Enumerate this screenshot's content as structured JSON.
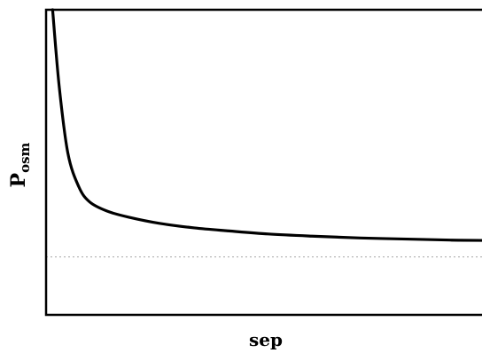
{
  "chart_data": {
    "type": "line",
    "title": "",
    "xlabel": "sep",
    "ylabel": {
      "main": "P",
      "subscript": "osm"
    },
    "ticks": "none",
    "grid": false,
    "legend": "none",
    "xlim": [
      0,
      1
    ],
    "ylim": [
      0,
      1
    ],
    "series": [
      {
        "color": "#000000",
        "x": [
          0.015,
          0.03,
          0.05,
          0.075,
          0.1,
          0.14,
          0.19,
          0.26,
          0.34,
          0.42,
          0.51,
          0.61,
          0.72,
          0.84,
          0.93,
          1.0
        ],
        "y": [
          1.0,
          0.75,
          0.53,
          0.42,
          0.37,
          0.34,
          0.32,
          0.3,
          0.285,
          0.275,
          0.265,
          0.258,
          0.252,
          0.248,
          0.245,
          0.244
        ]
      }
    ],
    "reference_line": {
      "orientation": "horizontal",
      "y": 0.19,
      "color": "#b8b8b8",
      "style": "dotted"
    }
  }
}
